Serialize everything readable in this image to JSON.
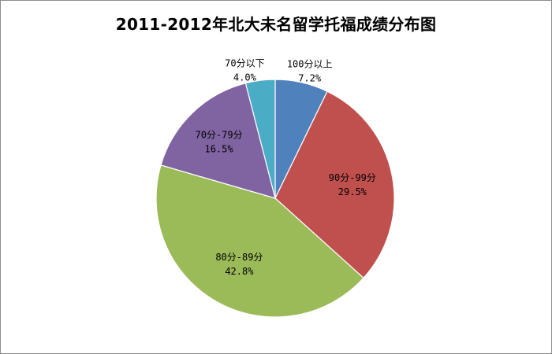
{
  "chart_data": {
    "type": "pie",
    "title": "2011-2012年北大未名留学托福成绩分布图",
    "start_angle_deg": 0,
    "direction": "clockwise",
    "slices": [
      {
        "label": "100分以上",
        "value": 7.2,
        "value_label": "7.2%",
        "color": "#4f81bd"
      },
      {
        "label": "90分-99分",
        "value": 29.5,
        "value_label": "29.5%",
        "color": "#c0504d"
      },
      {
        "label": "80分-89分",
        "value": 42.8,
        "value_label": "42.8%",
        "color": "#9bbb59"
      },
      {
        "label": "70分-79分",
        "value": 16.5,
        "value_label": "16.5%",
        "color": "#8064a2"
      },
      {
        "label": "70分以下",
        "value": 4.0,
        "value_label": "4.0%",
        "color": "#4bacc6"
      }
    ],
    "legend": "none",
    "label_placement": "inside"
  }
}
